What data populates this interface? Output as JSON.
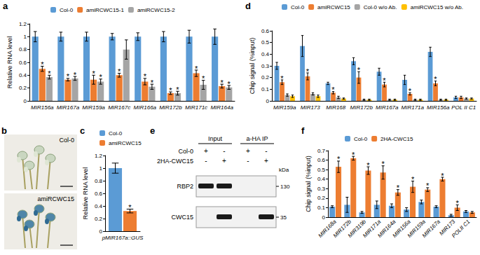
{
  "chart_data": [
    {
      "panel_label": "a",
      "type": "bar",
      "ylabel": "Relative RNA level",
      "categories": [
        "MIR156a",
        "MIR167a",
        "MIR159a",
        "MIR167c",
        "MIR166a",
        "MIR172b",
        "MIR171c",
        "MIR164a"
      ],
      "series": [
        {
          "name": "Col-0",
          "color": "#5b9bd5",
          "values": [
            1.0,
            1.0,
            1.0,
            1.0,
            1.0,
            1.0,
            1.0,
            1.0
          ],
          "errors": [
            0.08,
            0.07,
            0.07,
            0.05,
            0.06,
            0.08,
            0.1,
            0.12
          ],
          "significant": [
            false,
            false,
            false,
            false,
            false,
            false,
            false,
            false
          ]
        },
        {
          "name": "amiRCWC15-1",
          "color": "#ed7d31",
          "values": [
            0.5,
            0.33,
            0.33,
            0.4,
            0.3,
            0.12,
            0.43,
            0.23
          ],
          "errors": [
            0.04,
            0.02,
            0.07,
            0.03,
            0.05,
            0.02,
            0.05,
            0.03
          ],
          "significant": [
            true,
            true,
            true,
            true,
            true,
            true,
            true,
            true
          ]
        },
        {
          "name": "amiRCWC15-2",
          "color": "#a5a5a5",
          "values": [
            0.37,
            0.35,
            0.3,
            0.8,
            0.22,
            0.12,
            0.25,
            0.21
          ],
          "errors": [
            0.03,
            0.03,
            0.04,
            0.15,
            0.04,
            0.03,
            0.07,
            0.03
          ],
          "significant": [
            true,
            true,
            true,
            false,
            true,
            true,
            true,
            true
          ]
        }
      ],
      "significance_mark": "*",
      "ylim": [
        0,
        1.2
      ],
      "yticks": [
        0,
        0.2,
        0.4,
        0.6,
        0.8,
        1,
        1.2
      ],
      "grid": false,
      "legend": "top"
    },
    {
      "panel_label": "c",
      "type": "bar",
      "ylabel": "Relative RNA level",
      "categories": [
        "pMIR167a::GUS"
      ],
      "series": [
        {
          "name": "Col-0",
          "color": "#5b9bd5",
          "values": [
            1.0
          ],
          "errors": [
            0.08
          ],
          "significant": [
            false
          ]
        },
        {
          "name": "amiRCWC15",
          "color": "#ed7d31",
          "values": [
            0.32
          ],
          "errors": [
            0.03
          ],
          "significant": [
            true
          ]
        }
      ],
      "significance_mark": "*",
      "ylim": [
        0,
        1.2
      ],
      "yticks": [
        0,
        0.2,
        0.4,
        0.6,
        0.8,
        1,
        1.2
      ],
      "grid": false,
      "legend": "top"
    },
    {
      "panel_label": "d",
      "type": "bar",
      "ylabel": "Chip signal (%input)",
      "categories": [
        "MIR159a",
        "MIR173",
        "MIR168",
        "MIR172b",
        "MIR167a",
        "MIR171a",
        "MIR156a",
        "POL II C1"
      ],
      "series": [
        {
          "name": "Col-0",
          "color": "#5b9bd5",
          "values": [
            0.3,
            0.47,
            0.15,
            0.34,
            0.25,
            0.18,
            0.42,
            0.03
          ],
          "errors": [
            0.03,
            0.09,
            0.01,
            0.03,
            0.03,
            0.04,
            0.04,
            0.01
          ],
          "significant": [
            false,
            false,
            false,
            false,
            false,
            false,
            false,
            false
          ]
        },
        {
          "name": "amiRCWC15",
          "color": "#ed7d31",
          "values": [
            0.16,
            0.21,
            0.07,
            0.2,
            0.14,
            0.06,
            0.15,
            0.03
          ],
          "errors": [
            0.02,
            0.03,
            0.01,
            0.05,
            0.02,
            0.01,
            0.02,
            0.01
          ],
          "significant": [
            true,
            true,
            true,
            true,
            true,
            true,
            true,
            false
          ]
        },
        {
          "name": "Col-0 w/o Ab.",
          "color": "#a5a5a5",
          "values": [
            0.05,
            0.06,
            0.03,
            0.01,
            0.01,
            0.01,
            0.01,
            0.02
          ],
          "errors": [
            0.01,
            0.01,
            0.01,
            0.005,
            0.005,
            0.005,
            0.005,
            0.005
          ],
          "significant": [
            false,
            false,
            false,
            false,
            false,
            false,
            false,
            false
          ]
        },
        {
          "name": "amiRCWC15 w/o Ab.",
          "color": "#ffc000",
          "values": [
            0.04,
            0.04,
            0.02,
            0.01,
            0.01,
            0.01,
            0.01,
            0.02
          ],
          "errors": [
            0.01,
            0.01,
            0.005,
            0.005,
            0.005,
            0.005,
            0.005,
            0.005
          ],
          "significant": [
            false,
            false,
            false,
            false,
            false,
            false,
            false,
            false
          ]
        }
      ],
      "significance_mark": "*",
      "ylim": [
        0,
        0.6
      ],
      "yticks": [
        0,
        0.1,
        0.2,
        0.3,
        0.4,
        0.5,
        0.6
      ],
      "grid": false,
      "legend": "top"
    },
    {
      "panel_label": "f",
      "type": "bar",
      "ylabel": "Chip signal (%input)",
      "categories": [
        "MIR168a",
        "MIR172b",
        "MIR319b",
        "MIR171a",
        "MIR164a",
        "MIR156a",
        "MIR159a",
        "MIR167a",
        "MIR173",
        "POLII C1"
      ],
      "series": [
        {
          "name": "Col-0",
          "color": "#5b9bd5",
          "values": [
            0.11,
            0.13,
            0.05,
            0.13,
            0.12,
            0.08,
            0.16,
            0.11,
            0.02,
            0.06
          ],
          "errors": [
            0.01,
            0.08,
            0.01,
            0.04,
            0.02,
            0.02,
            0.02,
            0.01,
            0.01,
            0.01
          ],
          "significant": [
            false,
            false,
            false,
            false,
            false,
            false,
            false,
            false,
            false,
            false
          ]
        },
        {
          "name": "2HA-CWC15",
          "color": "#ed7d31",
          "values": [
            0.53,
            0.62,
            0.49,
            0.47,
            0.26,
            0.32,
            0.29,
            0.4,
            0.1,
            0.05
          ],
          "errors": [
            0.06,
            0.02,
            0.04,
            0.07,
            0.03,
            0.06,
            0.02,
            0.02,
            0.03,
            0.01
          ],
          "significant": [
            true,
            true,
            true,
            true,
            true,
            true,
            true,
            true,
            true,
            false
          ]
        }
      ],
      "significance_mark": "*",
      "ylim": [
        0,
        0.7
      ],
      "yticks": [
        0,
        0.1,
        0.2,
        0.3,
        0.4,
        0.5,
        0.6,
        0.7
      ],
      "grid": false,
      "legend": "top"
    }
  ],
  "photo_panel": {
    "panel_label": "b",
    "images": [
      {
        "label": "Col-0"
      },
      {
        "label": "amiRCWC15"
      }
    ]
  },
  "blot_panel": {
    "panel_label": "e",
    "groups": [
      "Input",
      "a-HA IP"
    ],
    "conditions": [
      {
        "name": "Col-0",
        "marks": [
          "+",
          "-",
          "+",
          "-"
        ]
      },
      {
        "name": "2HA-CWC15",
        "marks": [
          "-",
          "+",
          "-",
          "+"
        ]
      }
    ],
    "size_unit": "kDa",
    "blots": [
      {
        "name": "RBP2",
        "size": "130",
        "bands": [
          true,
          true,
          false,
          false
        ]
      },
      {
        "name": "CWC15",
        "size": "35",
        "bands": [
          false,
          true,
          false,
          true
        ]
      }
    ]
  }
}
